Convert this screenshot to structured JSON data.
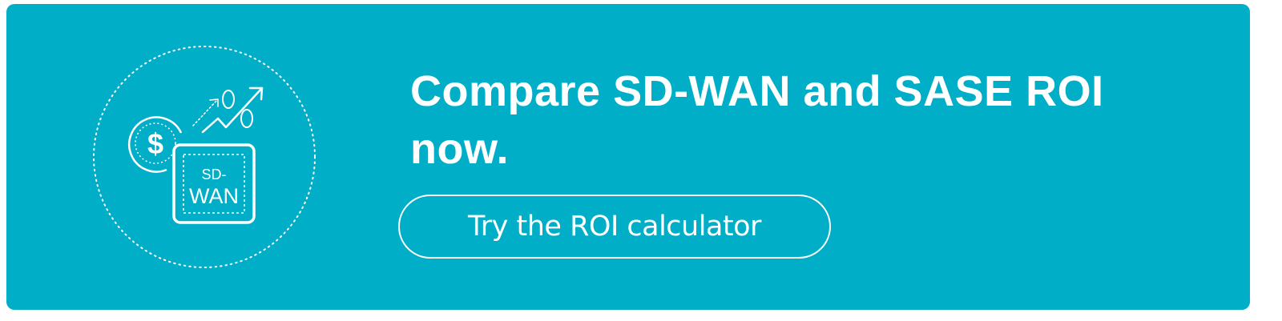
{
  "banner": {
    "background_color": "#00AEC7",
    "headline": "Compare SD-WAN and SASE ROI now.",
    "cta_label": "Try the ROI calculator",
    "illustration": {
      "icon_names": [
        "dollar-coin-icon",
        "growth-arrow-icon",
        "percent-icon",
        "sd-wan-box-icon"
      ],
      "box_label_line1": "SD-",
      "box_label_line2": "WAN"
    }
  }
}
